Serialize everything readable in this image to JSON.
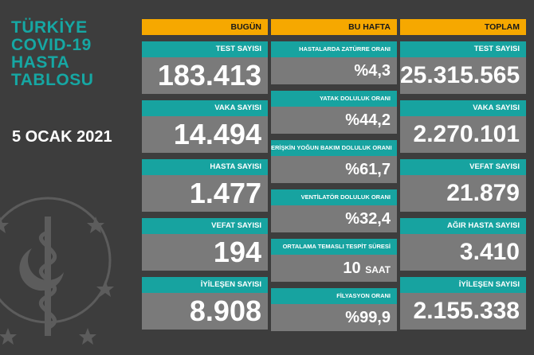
{
  "title": {
    "line1": "TÜRKİYE",
    "line2": "COVID-19",
    "line3": "HASTA",
    "line4": "TABLOSU"
  },
  "date": "5 OCAK 2021",
  "columns": {
    "today": {
      "header": "BUGÜN",
      "cards": [
        {
          "label": "TEST SAYISI",
          "value": "183.413"
        },
        {
          "label": "VAKA SAYISI",
          "value": "14.494"
        },
        {
          "label": "HASTA SAYISI",
          "value": "1.477"
        },
        {
          "label": "VEFAT SAYISI",
          "value": "194"
        },
        {
          "label": "İYİLEŞEN SAYISI",
          "value": "8.908"
        }
      ]
    },
    "week": {
      "header": "BU HAFTA",
      "cards": [
        {
          "label": "HASTALARDA ZATÜRRE ORANI",
          "value": "%4,3"
        },
        {
          "label": "YATAK DOLULUK ORANI",
          "value": "%44,2"
        },
        {
          "label": "ERİŞKİN YOĞUN BAKIM DOLULUK ORANI",
          "value": "%61,7"
        },
        {
          "label": "VENTİLATÖR DOLULUK ORANI",
          "value": "%32,4"
        },
        {
          "label": "ORTALAMA TEMASLI TESPİT SÜRESİ",
          "value": "10",
          "unit": "SAAT"
        },
        {
          "label": "FİLYASYON ORANI",
          "value": "%99,9"
        }
      ]
    },
    "total": {
      "header": "TOPLAM",
      "cards": [
        {
          "label": "TEST SAYISI",
          "value": "25.315.565"
        },
        {
          "label": "VAKA SAYISI",
          "value": "2.270.101"
        },
        {
          "label": "VEFAT SAYISI",
          "value": "21.879"
        },
        {
          "label": "AĞIR HASTA SAYISI",
          "value": "3.410"
        },
        {
          "label": "İYİLEŞEN SAYISI",
          "value": "2.155.338"
        }
      ]
    }
  },
  "colors": {
    "background": "#3d3d3d",
    "header": "#f6a800",
    "label": "#17a3a0",
    "card": "#7a7a7a",
    "title": "#16a7a3"
  },
  "icons": [
    "ministry-emblem-icon"
  ]
}
